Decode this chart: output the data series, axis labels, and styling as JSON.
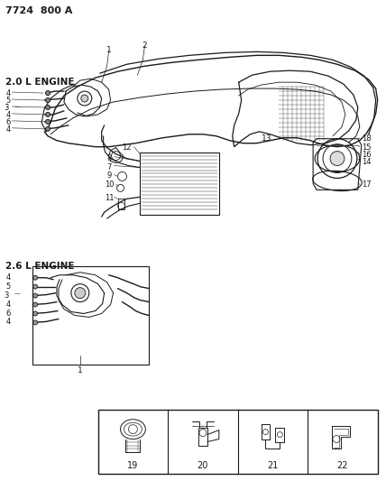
{
  "header": "7724  800 A",
  "label_20": "2.0 L ENGINE",
  "label_26": "2.6 L ENGINE",
  "bg_color": "#ffffff",
  "line_color": "#1a1a1a",
  "fig_width": 4.28,
  "fig_height": 5.33,
  "dpi": 100,
  "bottom_labels": [
    "19",
    "20",
    "21",
    "22"
  ],
  "callouts_left_20": [
    "4",
    "5",
    "3",
    "4",
    "6",
    "4"
  ],
  "callouts_left_26": [
    "4",
    "5",
    "3",
    "4",
    "6",
    "4"
  ],
  "main_callouts": [
    "1",
    "2",
    "7",
    "8",
    "9",
    "10",
    "11",
    "12",
    "13",
    "14",
    "15",
    "16",
    "17",
    "18"
  ]
}
